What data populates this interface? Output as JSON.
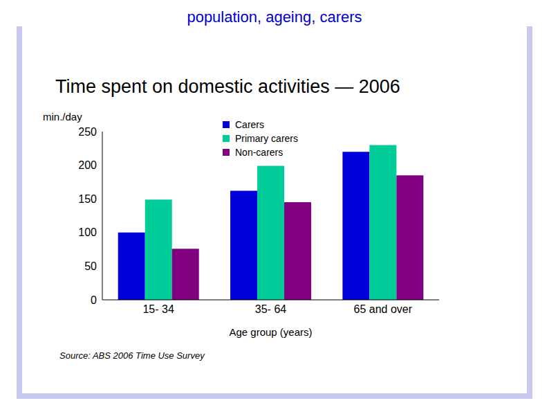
{
  "header": "population, ageing, carers",
  "source": "Source: ABS 2006 Time Use Survey",
  "chart_data": {
    "type": "bar",
    "title": "Time spent on domestic activities — 2006",
    "y_label": "min./day",
    "x_label": "Age group (years)",
    "categories": [
      "15- 34",
      "35- 64",
      "65 and over"
    ],
    "series": [
      {
        "name": "Carers",
        "color": "#0000dd",
        "values": [
          100,
          162,
          220
        ]
      },
      {
        "name": "Primary carers",
        "color": "#00cc99",
        "values": [
          149,
          199,
          230
        ]
      },
      {
        "name": "Non-carers",
        "color": "#800080",
        "values": [
          76,
          145,
          185
        ]
      }
    ],
    "ylim": [
      0,
      250
    ],
    "yticks": [
      0,
      50,
      100,
      150,
      200,
      250
    ],
    "legend": "top-right"
  }
}
